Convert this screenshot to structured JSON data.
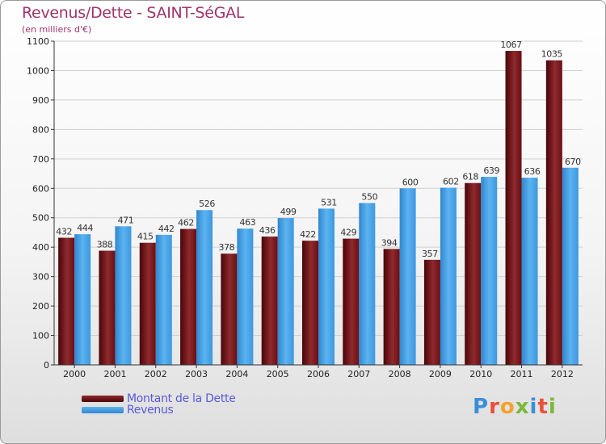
{
  "chart_data": {
    "type": "bar",
    "title": "Revenus/Dette - SAINT-SéGAL",
    "subtitle": "(en milliers d'€)",
    "categories": [
      "2000",
      "2001",
      "2002",
      "2003",
      "2004",
      "2005",
      "2006",
      "2007",
      "2008",
      "2009",
      "2010",
      "2011",
      "2012"
    ],
    "series": [
      {
        "name": "Montant de la Dette",
        "color": "#6b0f12",
        "values": [
          432,
          388,
          415,
          462,
          378,
          436,
          422,
          429,
          394,
          357,
          618,
          1067,
          1035
        ]
      },
      {
        "name": "Revenus",
        "color": "#4aa3e8",
        "values": [
          444,
          471,
          442,
          526,
          463,
          499,
          531,
          550,
          600,
          602,
          639,
          636,
          670
        ]
      }
    ],
    "ylim": [
      0,
      1100
    ],
    "yticks": [
      0,
      100,
      200,
      300,
      400,
      500,
      600,
      700,
      800,
      900,
      1000,
      1100
    ],
    "grid": true,
    "legend_position": "bottom-left"
  },
  "logo": {
    "letters": [
      {
        "ch": "P",
        "color": "#3a8fd8"
      },
      {
        "ch": "r",
        "color": "#e8503a"
      },
      {
        "ch": "o",
        "color": "#f2a32b"
      },
      {
        "ch": "x",
        "color": "#7ab83a"
      },
      {
        "ch": "i",
        "color": "#3a8fd8"
      },
      {
        "ch": "t",
        "color": "#e8503a"
      },
      {
        "ch": "i",
        "color": "#7ab83a"
      }
    ]
  }
}
